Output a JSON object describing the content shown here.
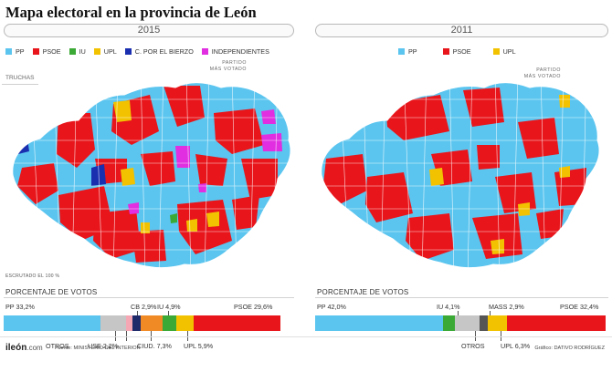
{
  "title": "Mapa electoral en la provincia de León",
  "left": {
    "year": "2015",
    "legend": [
      {
        "label": "PP",
        "color": "#5bc5ef"
      },
      {
        "label": "PSOE",
        "color": "#e8151b"
      },
      {
        "label": "IU",
        "color": "#3aa935"
      },
      {
        "label": "UPL",
        "color": "#f2c200"
      },
      {
        "label": "C. POR EL BIERZO",
        "color": "#1a2fb0"
      },
      {
        "label": "INDEPENDIENTES",
        "color": "#e02ee0"
      }
    ],
    "partido_l1": "PARTIDO",
    "partido_l2": "MÁS VOTADO",
    "truchas": "TRUCHAS",
    "escrutado": "ESCRUTADO EL 100 %",
    "porcentaje_title": "PORCENTAJE DE VOTOS",
    "labels": {
      "pp": "PP 33,2%",
      "cb": "CB 2,9%",
      "iu": "IU 4,9%",
      "psoe": "PSOE 29,6%",
      "otros": "OTROS",
      "use": "USE 2,2%",
      "ciud": "CIUD. 7,3%",
      "upl": "UPL 5,9%"
    },
    "stack": [
      {
        "party": "PP",
        "value": 33.2,
        "color": "#5bc5ef"
      },
      {
        "party": "OTROS",
        "value": 8.6,
        "color": "#c6c6c6"
      },
      {
        "party": "USE",
        "value": 2.2,
        "color": "#f5a7b4"
      },
      {
        "party": "CB",
        "value": 2.9,
        "color": "#1f2a6b"
      },
      {
        "party": "CIUD.",
        "value": 7.3,
        "color": "#f08a24"
      },
      {
        "party": "IU",
        "value": 4.9,
        "color": "#3aa935"
      },
      {
        "party": "UPL",
        "value": 5.9,
        "color": "#f2c200"
      },
      {
        "party": "PSOE",
        "value": 29.6,
        "color": "#e8151b"
      }
    ]
  },
  "right": {
    "year": "2011",
    "legend": [
      {
        "label": "PP",
        "color": "#5bc5ef"
      },
      {
        "label": "PSOE",
        "color": "#e8151b"
      },
      {
        "label": "UPL",
        "color": "#f2c200"
      }
    ],
    "partido_l1": "PARTIDO",
    "partido_l2": "MÁS VOTADO",
    "porcentaje_title": "PORCENTAJE DE VOTOS",
    "labels": {
      "pp": "PP 42,0%",
      "iu": "IU 4,1%",
      "mass": "MASS 2,9%",
      "psoe": "PSOE 32,4%",
      "otros": "OTROS",
      "upl": "UPL 6,3%"
    },
    "stack": [
      {
        "party": "PP",
        "value": 42.0,
        "color": "#5bc5ef"
      },
      {
        "party": "IU",
        "value": 4.1,
        "color": "#3aa935"
      },
      {
        "party": "OTROS",
        "value": 8.0,
        "color": "#c6c6c6"
      },
      {
        "party": "MASS",
        "value": 2.9,
        "color": "#555555"
      },
      {
        "party": "UPL",
        "value": 6.3,
        "color": "#f2c200"
      },
      {
        "party": "PSOE",
        "value": 32.4,
        "color": "#e8151b"
      }
    ]
  },
  "footer": {
    "logo": "ileón",
    "logo_suffix": ".com",
    "fuente": "Fuente: MINISTERIO DEL INTERIOR",
    "grafico": "Gráfico: DATIVO RODRÍGUEZ"
  }
}
